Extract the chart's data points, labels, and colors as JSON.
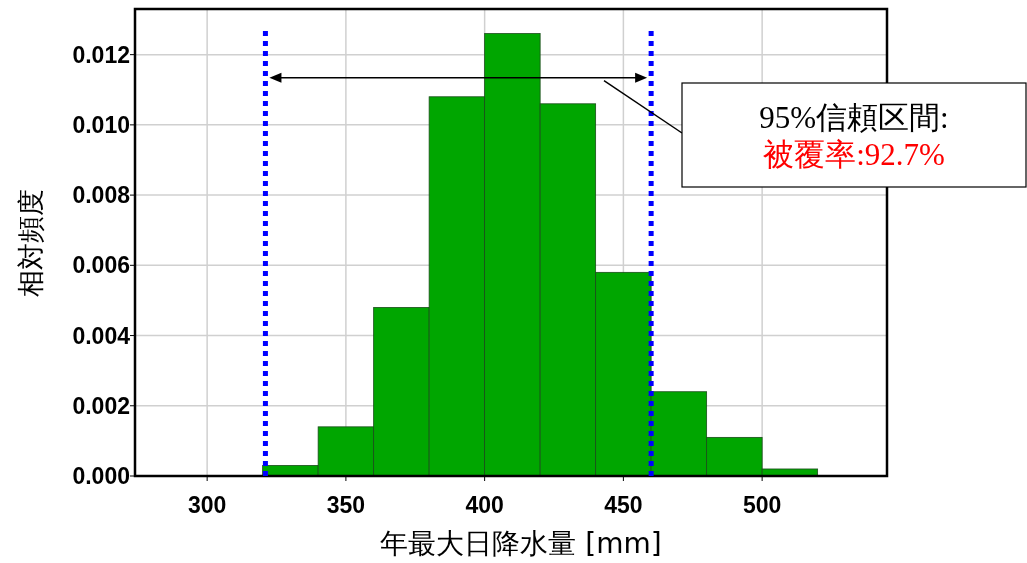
{
  "chart_data": {
    "type": "histogram",
    "xlabel": "年最大日降水量 [mm]",
    "ylabel": "相対頻度",
    "bins": [
      320,
      340,
      360,
      380,
      400,
      420,
      440,
      460,
      480,
      500,
      520
    ],
    "values": [
      0.0003,
      0.0014,
      0.0048,
      0.0108,
      0.0126,
      0.0106,
      0.0058,
      0.0024,
      0.0011,
      0.0002
    ],
    "color": "#00a600",
    "xlim": [
      274,
      545
    ],
    "xticks": [
      300,
      350,
      400,
      450,
      500
    ],
    "ylim": [
      0,
      0.0133
    ],
    "yticks": [
      {
        "value": 0,
        "label": "0.000"
      },
      {
        "value": 0.002,
        "label": "0.002"
      },
      {
        "value": 0.004,
        "label": "0.004"
      },
      {
        "value": 0.006,
        "label": "0.006"
      },
      {
        "value": 0.008,
        "label": "0.008"
      },
      {
        "value": 0.01,
        "label": "0.010"
      },
      {
        "value": 0.012,
        "label": "0.012"
      }
    ],
    "grid": true,
    "ref_lines": [
      {
        "axis": "x",
        "value": 321,
        "color": "#0000ff",
        "line_style": "dotted"
      },
      {
        "axis": "x",
        "value": 460,
        "color": "#0000ff",
        "line_style": "dotted"
      }
    ],
    "annotations": [
      "95%信頼区間:",
      "被覆率:92.7%"
    ]
  }
}
